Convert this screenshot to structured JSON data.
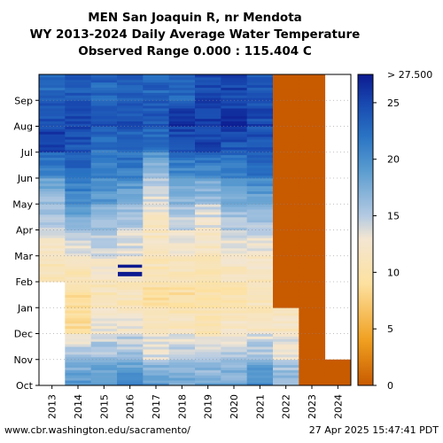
{
  "chart_data": {
    "type": "heatmap",
    "title": [
      "MEN San Joaquin R, nr Mendota",
      "WY 2013-2024 Daily Average Water Temperature",
      "Observed Range 0.000 : 115.404 C"
    ],
    "xlabel": "",
    "ylabel": "",
    "x_categories": [
      "2013",
      "2014",
      "2015",
      "2016",
      "2017",
      "2018",
      "2019",
      "2020",
      "2021",
      "2022",
      "2023",
      "2024"
    ],
    "y_categories": [
      "Oct",
      "Nov",
      "Dec",
      "Jan",
      "Feb",
      "Mar",
      "Apr",
      "May",
      "Jun",
      "Jul",
      "Aug",
      "Sep"
    ],
    "y_order": "bottom-to-top",
    "grid": "dotted horizontal lines at month boundaries",
    "colorbar": {
      "position": "right",
      "min": 0,
      "max": 27.5,
      "ticks": [
        0,
        5,
        10,
        15,
        20,
        25
      ],
      "max_label": "> 27.500",
      "stops": [
        {
          "value": 0,
          "color": "#c85a00"
        },
        {
          "value": 4,
          "color": "#f0a020"
        },
        {
          "value": 9,
          "color": "#fde1a0"
        },
        {
          "value": 13,
          "color": "#f3e6d2"
        },
        {
          "value": 15,
          "color": "#b4cae2"
        },
        {
          "value": 19,
          "color": "#5a9cd0"
        },
        {
          "value": 22,
          "color": "#2a74c4"
        },
        {
          "value": 25,
          "color": "#1848b0"
        },
        {
          "value": 27.5,
          "color": "#0c1a90"
        }
      ]
    },
    "monthly_temperature_c": [
      {
        "year": "2013",
        "values": [
          null,
          null,
          null,
          null,
          10.5,
          11.5,
          15,
          16,
          20,
          25.5,
          25,
          23
        ]
      },
      {
        "year": "2014",
        "values": [
          19,
          16,
          9,
          9,
          10.5,
          13,
          17,
          20,
          23,
          24,
          25,
          24
        ]
      },
      {
        "year": "2015",
        "values": [
          19,
          16,
          13,
          11,
          11.5,
          14,
          16,
          19,
          21,
          22,
          24,
          23
        ]
      },
      {
        "year": "2016",
        "values": [
          20,
          16,
          13,
          11,
          12,
          13.5,
          15,
          18,
          21,
          23,
          24.5,
          23
        ]
      },
      {
        "year": "2017",
        "values": [
          19,
          14,
          12,
          9,
          10.5,
          12,
          12,
          13.5,
          16,
          22,
          24,
          23
        ]
      },
      {
        "year": "2018",
        "values": [
          18,
          15,
          12,
          9,
          10.5,
          12,
          14,
          17,
          20,
          24,
          26,
          23
        ]
      },
      {
        "year": "2019",
        "values": [
          18,
          14,
          11,
          10,
          10.5,
          11.5,
          13,
          16,
          20,
          25,
          26,
          25
        ]
      },
      {
        "year": "2020",
        "values": [
          18,
          15,
          12,
          10,
          11,
          13,
          15,
          18,
          21,
          24,
          26,
          25
        ]
      },
      {
        "year": "2021",
        "values": [
          20,
          16,
          12,
          11,
          11.5,
          13,
          15,
          18,
          22,
          24,
          25,
          24
        ]
      },
      {
        "year": "2022",
        "values": [
          17,
          14,
          12,
          0,
          0,
          0,
          0,
          0,
          0,
          0,
          0,
          0
        ]
      },
      {
        "year": "2023",
        "values": [
          0,
          0,
          0,
          0,
          0,
          0,
          0,
          0,
          0,
          0,
          0,
          0
        ]
      },
      {
        "year": "2024",
        "values": [
          0,
          null,
          null,
          null,
          null,
          null,
          null,
          null,
          null,
          null,
          null,
          null
        ]
      }
    ],
    "annotation_colors": {
      "background": "#ffffff",
      "axis": "#000000",
      "highlight_band": "#0c1a90"
    }
  },
  "footer": {
    "source": "www.cbr.washington.edu/sacramento/",
    "timestamp": "27 Apr 2025 15:47:41 PDT"
  }
}
